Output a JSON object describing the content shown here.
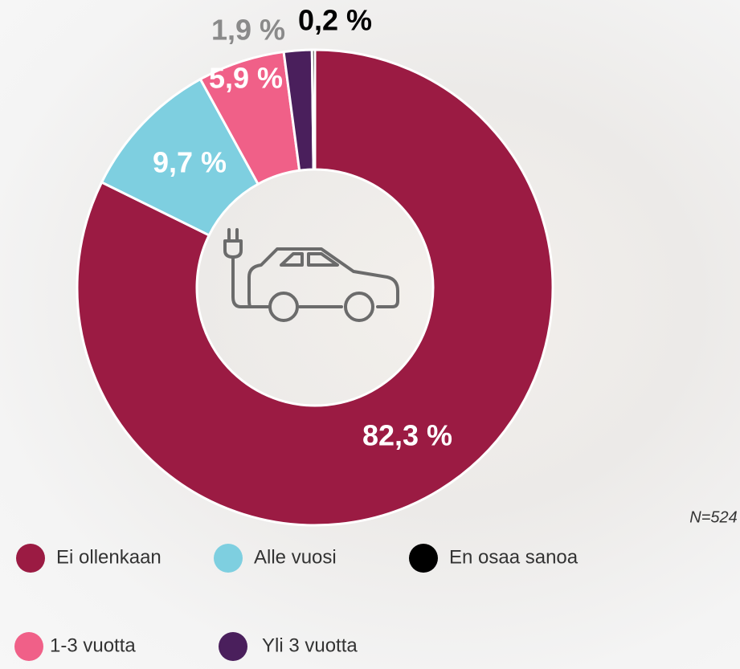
{
  "chart_data": {
    "type": "donut",
    "categories": [
      "Ei ollenkaan",
      "Alle vuosi",
      "1-3 vuotta",
      "Yli 3 vuotta",
      "En osaa sanoa"
    ],
    "values": [
      82.3,
      9.7,
      5.9,
      1.9,
      0.2
    ],
    "value_labels": [
      "82,3 %",
      "9,7 %",
      "5,9 %",
      "1,9 %",
      "0,2 %"
    ],
    "colors": [
      "#9b1b43",
      "#7ecfe0",
      "#f06088",
      "#4a1f5c",
      "#000000"
    ],
    "annotation": "N=524"
  }
}
